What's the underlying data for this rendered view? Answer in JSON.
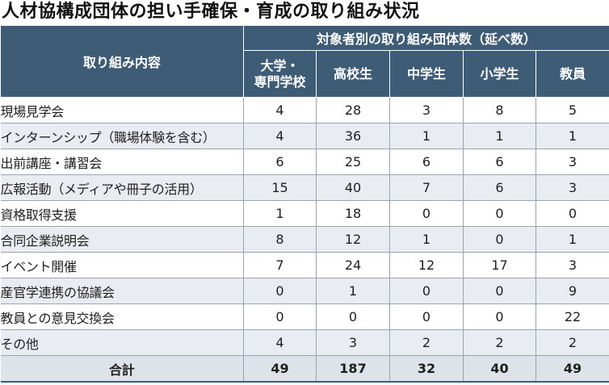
{
  "title": "人材協構成団体の担い手確保・育成の取り組み状況",
  "header": {
    "item_label": "取り組み内容",
    "group_label": "対象者別の取り組み団体数（延べ数）",
    "columns": [
      "大学・\n専門学校",
      "高校生",
      "中学生",
      "小学生",
      "教員"
    ]
  },
  "rows": [
    {
      "label": "現場見学会",
      "values": [
        "4",
        "28",
        "3",
        "8",
        "5"
      ]
    },
    {
      "label": "インターンシップ（職場体験を含む）",
      "values": [
        "4",
        "36",
        "1",
        "1",
        "1"
      ]
    },
    {
      "label": "出前講座・講習会",
      "values": [
        "6",
        "25",
        "6",
        "6",
        "3"
      ]
    },
    {
      "label": "広報活動（メディアや冊子の活用）",
      "values": [
        "15",
        "40",
        "7",
        "6",
        "3"
      ]
    },
    {
      "label": "資格取得支援",
      "values": [
        "1",
        "18",
        "0",
        "0",
        "0"
      ]
    },
    {
      "label": "合同企業説明会",
      "values": [
        "8",
        "12",
        "1",
        "0",
        "1"
      ]
    },
    {
      "label": "イベント開催",
      "values": [
        "7",
        "24",
        "12",
        "17",
        "3"
      ]
    },
    {
      "label": "産官学連携の協議会",
      "values": [
        "0",
        "1",
        "0",
        "0",
        "9"
      ]
    },
    {
      "label": "教員との意見交換会",
      "values": [
        "0",
        "0",
        "0",
        "0",
        "22"
      ]
    },
    {
      "label": "その他",
      "values": [
        "4",
        "3",
        "2",
        "2",
        "2"
      ]
    }
  ],
  "total": {
    "label": "合計",
    "values": [
      "49",
      "187",
      "32",
      "40",
      "49"
    ]
  },
  "colors": {
    "header_bg": "#3f5c77",
    "stripe": "#e9edf1",
    "total_bg": "#dde3e9"
  }
}
